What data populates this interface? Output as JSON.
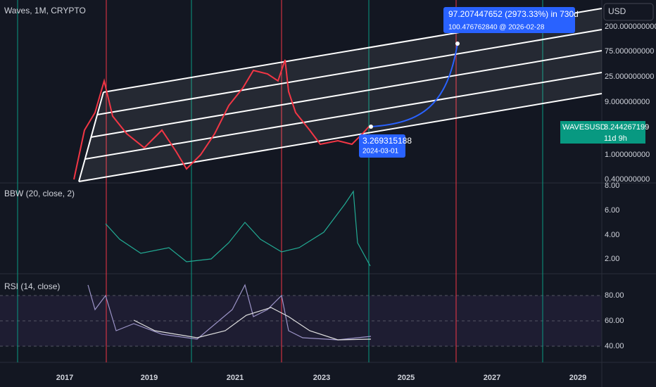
{
  "header": {
    "symbol": "Waves, 1M, CRYPTO",
    "currency": "USD"
  },
  "price_axis": [
    "200.000000000",
    "75.000000000",
    "25.000000000",
    "9.000000000",
    "1.000000000",
    "0.400000000"
  ],
  "last_price": {
    "ticker": "WAVESUSD",
    "price": "3.244267199",
    "countdown": "11d 9h"
  },
  "projection": {
    "headline": "97.207447652 (2973.33%) in 730d",
    "target": "100.476762840 @ 2026-02-28"
  },
  "start_point": {
    "price": "3.269315188",
    "date": "2024-03-01"
  },
  "bbw": {
    "title": "BBW (20, close, 2)",
    "axis": [
      "8.00",
      "6.00",
      "4.00",
      "2.00"
    ]
  },
  "rsi": {
    "title": "RSI (14, close)",
    "axis": [
      "80.00",
      "60.00",
      "40.00"
    ]
  },
  "time_axis": [
    "2017",
    "2019",
    "2021",
    "2023",
    "2025",
    "2027",
    "2029"
  ]
}
